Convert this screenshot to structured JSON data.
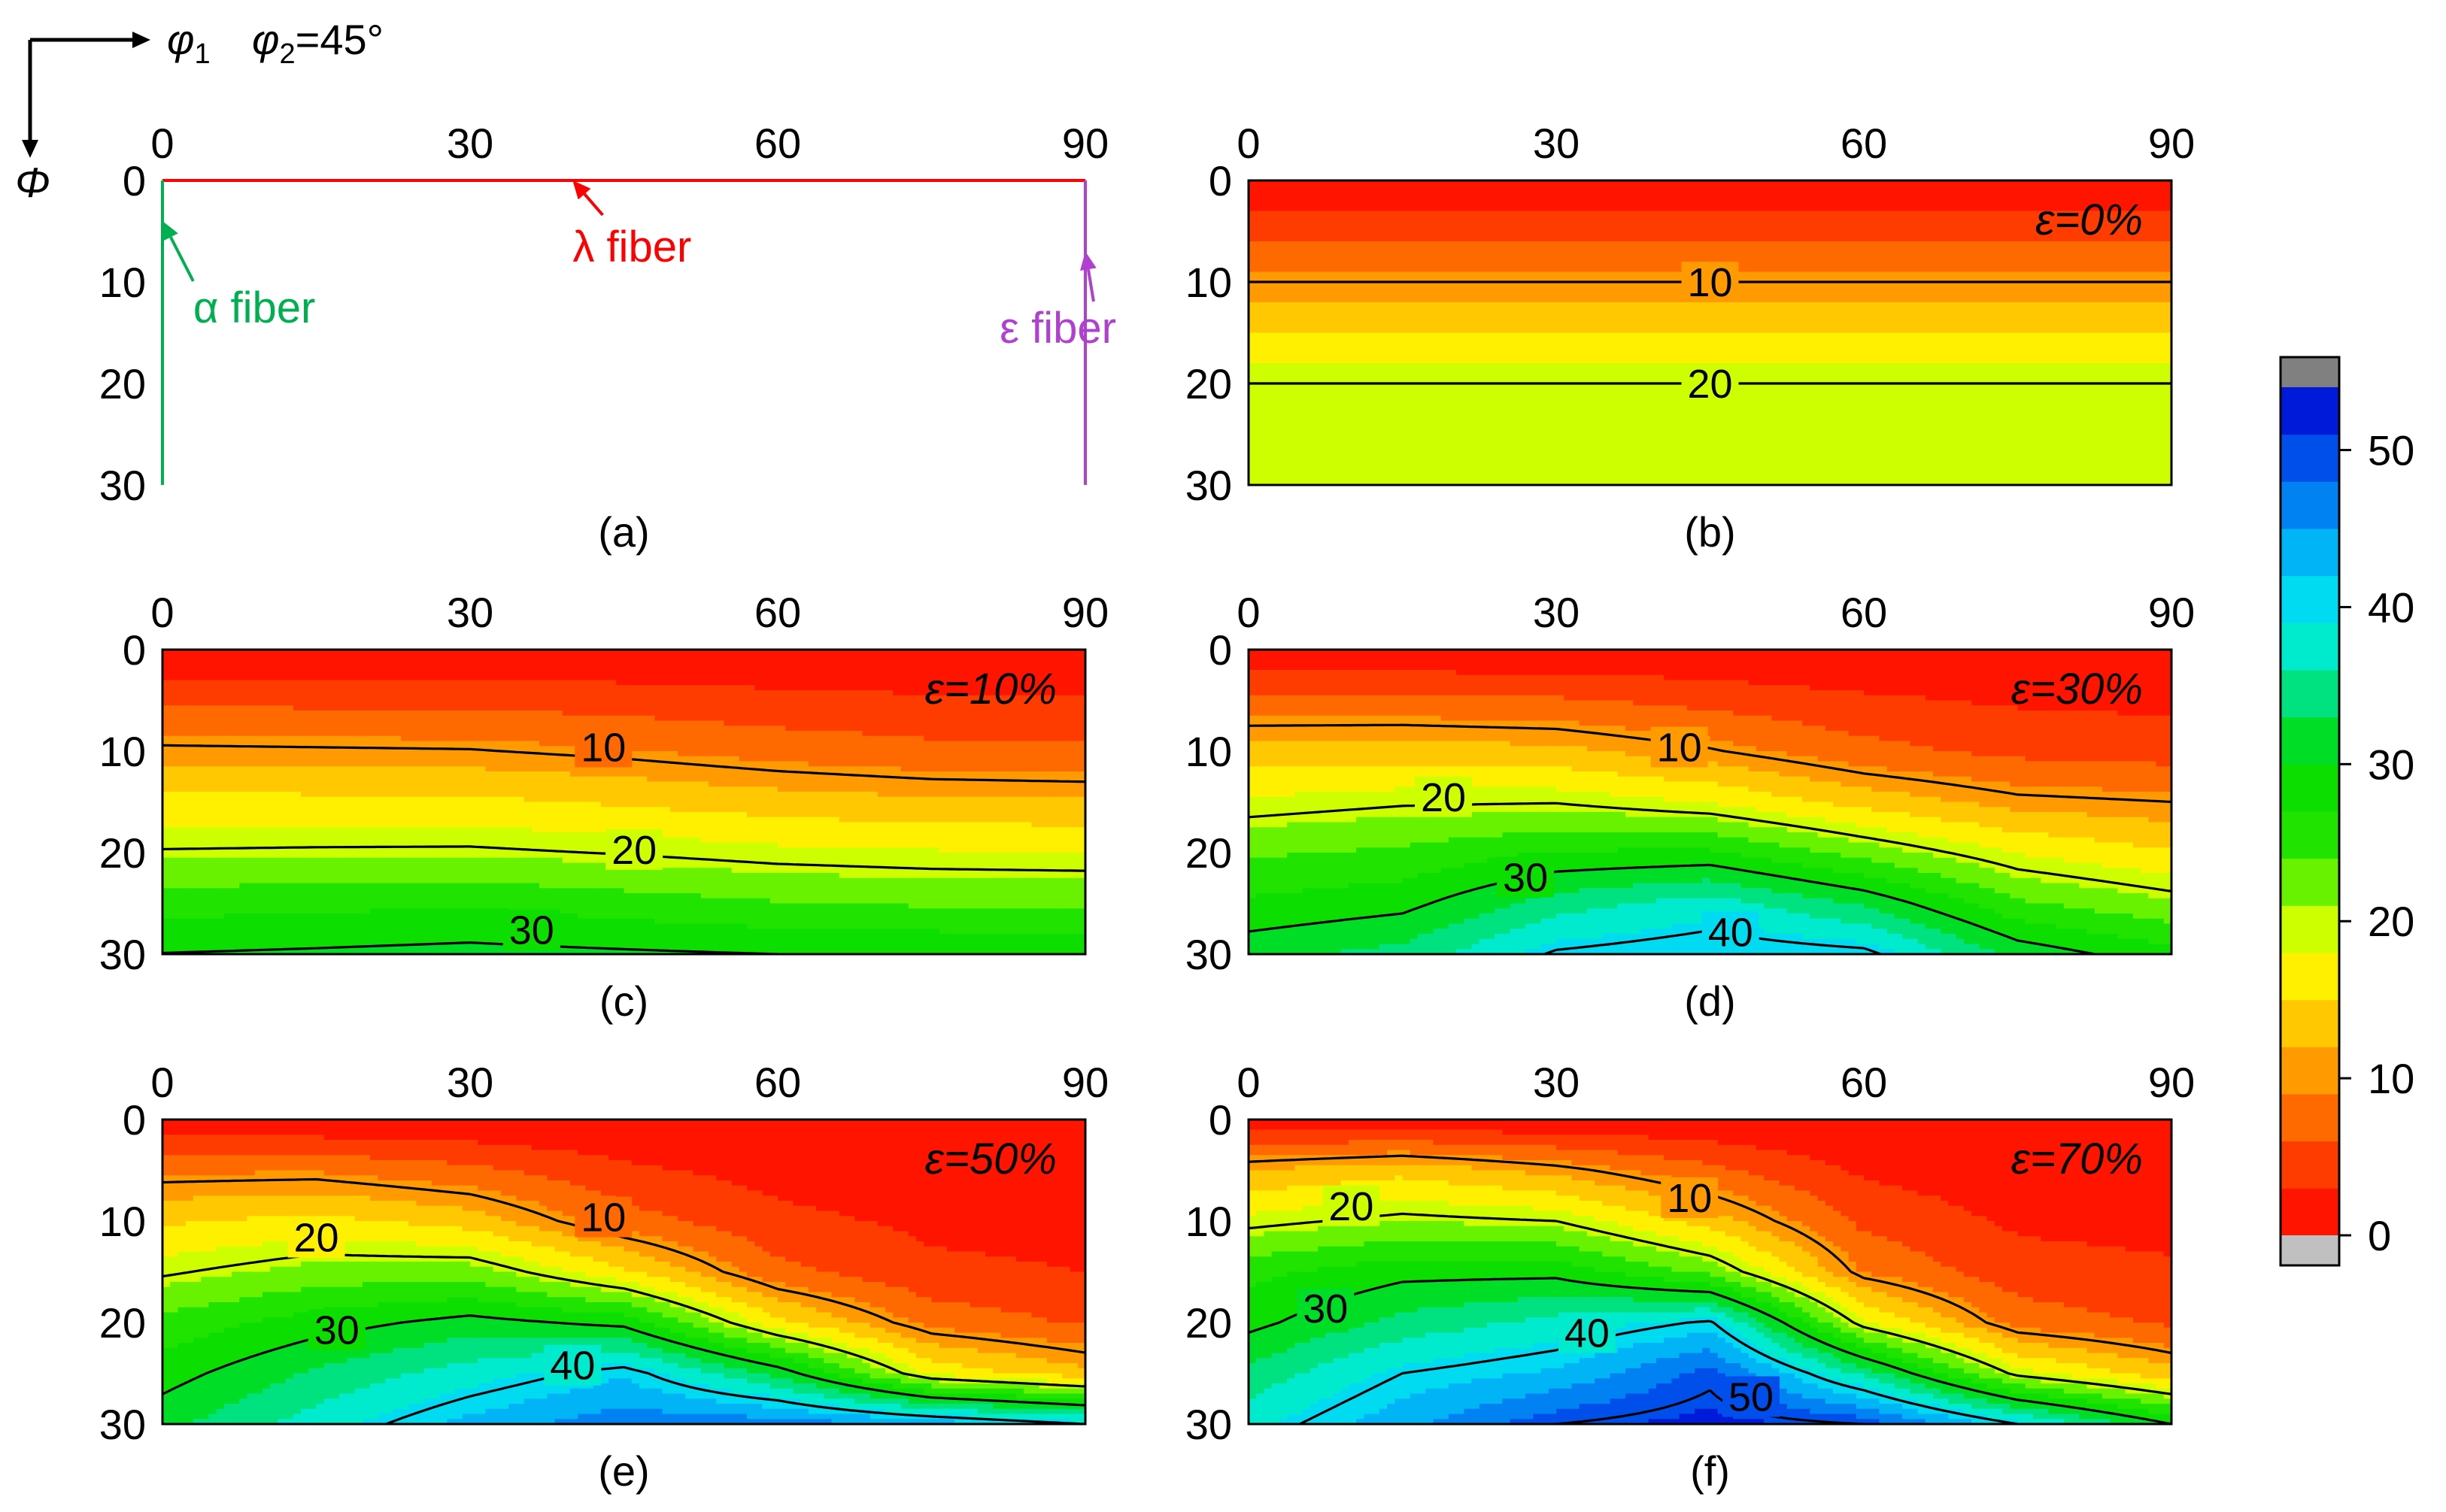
{
  "header": {
    "phi1_label": "φ",
    "phi1_sub": "1",
    "phi2_label": "φ",
    "phi2_sub": "2",
    "phi2_value": "=45°",
    "Phi_label": "Φ"
  },
  "colorbar": {
    "ticks": [
      "0",
      "10",
      "20",
      "30",
      "40",
      "50"
    ],
    "min": 0,
    "max": 54,
    "over_color": "#808080",
    "under_color": "#c0c0c0"
  },
  "chart_data": [
    {
      "id": "a",
      "type": "line",
      "panel_label": "(a)",
      "xlabel": "φ1",
      "ylabel": "Φ",
      "xlim": [
        0,
        90
      ],
      "ylim": [
        0,
        30
      ],
      "xticks": [
        "0",
        "30",
        "60",
        "90"
      ],
      "yticks": [
        "0",
        "10",
        "20",
        "30"
      ],
      "series": [
        {
          "name": "λ fiber",
          "color": "#ff0000",
          "x": [
            0,
            90
          ],
          "y": [
            0,
            0
          ]
        },
        {
          "name": "α fiber",
          "color": "#00b050",
          "x": [
            0,
            0
          ],
          "y": [
            0,
            30
          ]
        },
        {
          "name": "ε fiber",
          "color": "#b040d0",
          "x": [
            90,
            90
          ],
          "y": [
            0,
            30
          ]
        }
      ],
      "annotations": [
        {
          "text": "λ fiber",
          "color": "#ff0000",
          "at": [
            40,
            8
          ],
          "points_to": [
            40,
            0
          ]
        },
        {
          "text": "α fiber",
          "color": "#00b050",
          "at": [
            3,
            14
          ],
          "points_to": [
            0,
            4
          ]
        },
        {
          "text": "ε fiber",
          "color": "#b040d0",
          "at": [
            82,
            16
          ],
          "points_to": [
            90,
            7
          ]
        }
      ]
    },
    {
      "id": "b",
      "type": "contour",
      "panel_label": "(b)",
      "strain_label": "ε=0%",
      "xlim": [
        0,
        90
      ],
      "ylim": [
        0,
        30
      ],
      "xticks": [
        "0",
        "30",
        "60",
        "90"
      ],
      "yticks": [
        "0",
        "10",
        "20",
        "30"
      ],
      "x": [
        0,
        15,
        30,
        45,
        60,
        75,
        90
      ],
      "y": [
        0,
        5,
        10,
        15,
        20,
        25,
        30
      ],
      "z": [
        [
          0,
          0,
          0,
          0,
          0,
          0,
          0
        ],
        [
          5,
          5,
          5,
          5,
          5,
          5,
          5
        ],
        [
          10,
          10,
          10,
          10,
          10,
          10,
          10
        ],
        [
          15,
          15,
          15,
          15,
          15,
          15,
          15
        ],
        [
          20,
          20,
          20,
          20,
          20,
          20,
          20
        ],
        [
          20.5,
          20.5,
          20.5,
          20.5,
          20.5,
          20.5,
          20.5
        ],
        [
          21,
          21,
          21,
          21,
          21,
          21,
          21
        ]
      ],
      "contour_lines": [
        10,
        20
      ],
      "contour_labels": [
        {
          "text": "10",
          "at": [
            45,
            10
          ]
        },
        {
          "text": "20",
          "at": [
            45,
            20
          ]
        }
      ]
    },
    {
      "id": "c",
      "type": "contour",
      "panel_label": "(c)",
      "strain_label": "ε=10%",
      "xlim": [
        0,
        90
      ],
      "ylim": [
        0,
        30
      ],
      "xticks": [
        "0",
        "30",
        "60",
        "90"
      ],
      "yticks": [
        "0",
        "10",
        "20",
        "30"
      ],
      "x": [
        0,
        15,
        30,
        45,
        60,
        75,
        90
      ],
      "y": [
        0,
        5,
        10,
        15,
        20,
        25,
        30
      ],
      "z": [
        [
          0,
          0,
          0,
          0,
          0,
          0,
          0
        ],
        [
          5.3,
          5.2,
          5.1,
          4.6,
          3.9,
          3.4,
          3.2
        ],
        [
          10.6,
          10.4,
          10.2,
          9.2,
          7.8,
          6.8,
          6.5
        ],
        [
          15.9,
          15.8,
          15.6,
          14.6,
          13.4,
          12.6,
          12.3
        ],
        [
          20.3,
          20.5,
          20.6,
          19.8,
          18.8,
          18.3,
          18.1
        ],
        [
          25.7,
          26.2,
          26.6,
          25.4,
          24.2,
          23.6,
          23.4
        ],
        [
          30.1,
          30.5,
          31,
          30.5,
          30,
          29.8,
          29.7
        ]
      ],
      "contour_lines": [
        10,
        20,
        30
      ],
      "contour_labels": [
        {
          "text": "10",
          "at": [
            43,
            9.6
          ]
        },
        {
          "text": "20",
          "at": [
            46,
            19.7
          ]
        },
        {
          "text": "30",
          "at": [
            36,
            27.6
          ]
        }
      ]
    },
    {
      "id": "d",
      "type": "contour",
      "panel_label": "(d)",
      "strain_label": "ε=30%",
      "xlim": [
        0,
        90
      ],
      "ylim": [
        0,
        30
      ],
      "xticks": [
        "0",
        "30",
        "60",
        "90"
      ],
      "yticks": [
        "0",
        "10",
        "20",
        "30"
      ],
      "x": [
        0,
        15,
        30,
        45,
        60,
        75,
        90
      ],
      "y": [
        0,
        5,
        10,
        15,
        20,
        25,
        30
      ],
      "z": [
        [
          0,
          0,
          0,
          0,
          0,
          0,
          0
        ],
        [
          6.7,
          6.8,
          6.4,
          5,
          3.5,
          2.6,
          2.3
        ],
        [
          13.3,
          13.4,
          12.8,
          10.3,
          7,
          5.2,
          4.6
        ],
        [
          18.5,
          19.6,
          19.8,
          17.7,
          13.8,
          10.8,
          10
        ],
        [
          23.5,
          24.6,
          27.3,
          27.6,
          22.7,
          17.8,
          15.2
        ],
        [
          27.5,
          29,
          34.5,
          37.5,
          32.5,
          24.5,
          21.5
        ],
        [
          32,
          34,
          40.5,
          42.2,
          41,
          32,
          28
        ]
      ],
      "contour_lines": [
        10,
        20,
        30,
        40
      ],
      "contour_labels": [
        {
          "text": "10",
          "at": [
            42,
            9.6
          ]
        },
        {
          "text": "20",
          "at": [
            19,
            14.5
          ]
        },
        {
          "text": "30",
          "at": [
            27,
            22.4
          ]
        },
        {
          "text": "40",
          "at": [
            47,
            27.8
          ]
        }
      ]
    },
    {
      "id": "e",
      "type": "contour",
      "panel_label": "(e)",
      "strain_label": "ε=50%",
      "xlim": [
        0,
        90
      ],
      "ylim": [
        0,
        30
      ],
      "xticks": [
        "0",
        "30",
        "60",
        "90"
      ],
      "yticks": [
        "0",
        "10",
        "20",
        "30"
      ],
      "x": [
        0,
        15,
        30,
        45,
        60,
        75,
        90
      ],
      "y": [
        0,
        5,
        10,
        15,
        20,
        25,
        30
      ],
      "z": [
        [
          0,
          0,
          0,
          0,
          0,
          0,
          0
        ],
        [
          8.6,
          8.7,
          6.8,
          3.6,
          1.9,
          1.2,
          1
        ],
        [
          14.5,
          16,
          13.6,
          7.3,
          3.8,
          2.4,
          2
        ],
        [
          19.5,
          22.1,
          22.5,
          15.6,
          6.9,
          3.6,
          3
        ],
        [
          25,
          28.5,
          31.2,
          29,
          16,
          8,
          5.6
        ],
        [
          28.6,
          33.5,
          37.5,
          41.5,
          32,
          17.2,
          13
        ],
        [
          32,
          37.5,
          43,
          47,
          47,
          44,
          40
        ]
      ],
      "contour_lines": [
        10,
        20,
        30,
        40
      ],
      "contour_labels": [
        {
          "text": "10",
          "at": [
            43,
            9.6
          ]
        },
        {
          "text": "20",
          "at": [
            15,
            11.6
          ]
        },
        {
          "text": "30",
          "at": [
            17,
            20.7
          ]
        },
        {
          "text": "40",
          "at": [
            40,
            24.2
          ]
        }
      ]
    },
    {
      "id": "f",
      "type": "contour",
      "panel_label": "(f)",
      "strain_label": "ε=70%",
      "xlim": [
        0,
        90
      ],
      "ylim": [
        0,
        30
      ],
      "xticks": [
        "0",
        "30",
        "60",
        "90"
      ],
      "yticks": [
        "0",
        "10",
        "20",
        "30"
      ],
      "x": [
        0,
        15,
        30,
        45,
        60,
        75,
        90
      ],
      "y": [
        0,
        5,
        10,
        15,
        20,
        25,
        30
      ],
      "z": [
        [
          0,
          0,
          0,
          0,
          0,
          0,
          0
        ],
        [
          12,
          14,
          11,
          6.8,
          2.5,
          1.2,
          1
        ],
        [
          19,
          21,
          20,
          13.5,
          5.2,
          2.5,
          2
        ],
        [
          26,
          29,
          29,
          23,
          8.8,
          4.2,
          3.5
        ],
        [
          29,
          34,
          37,
          40.5,
          18.5,
          7.8,
          5.5
        ],
        [
          34,
          40,
          42.5,
          49,
          35,
          19,
          13
        ],
        [
          38,
          44,
          50,
          52,
          50,
          40,
          30
        ]
      ],
      "contour_lines": [
        10,
        20,
        30,
        40,
        50
      ],
      "contour_labels": [
        {
          "text": "10",
          "at": [
            43,
            7.7
          ]
        },
        {
          "text": "20",
          "at": [
            10,
            8.5
          ]
        },
        {
          "text": "30",
          "at": [
            7.5,
            18.6
          ]
        },
        {
          "text": "40",
          "at": [
            33,
            21
          ]
        },
        {
          "text": "50",
          "at": [
            49,
            27.3
          ]
        }
      ]
    }
  ]
}
